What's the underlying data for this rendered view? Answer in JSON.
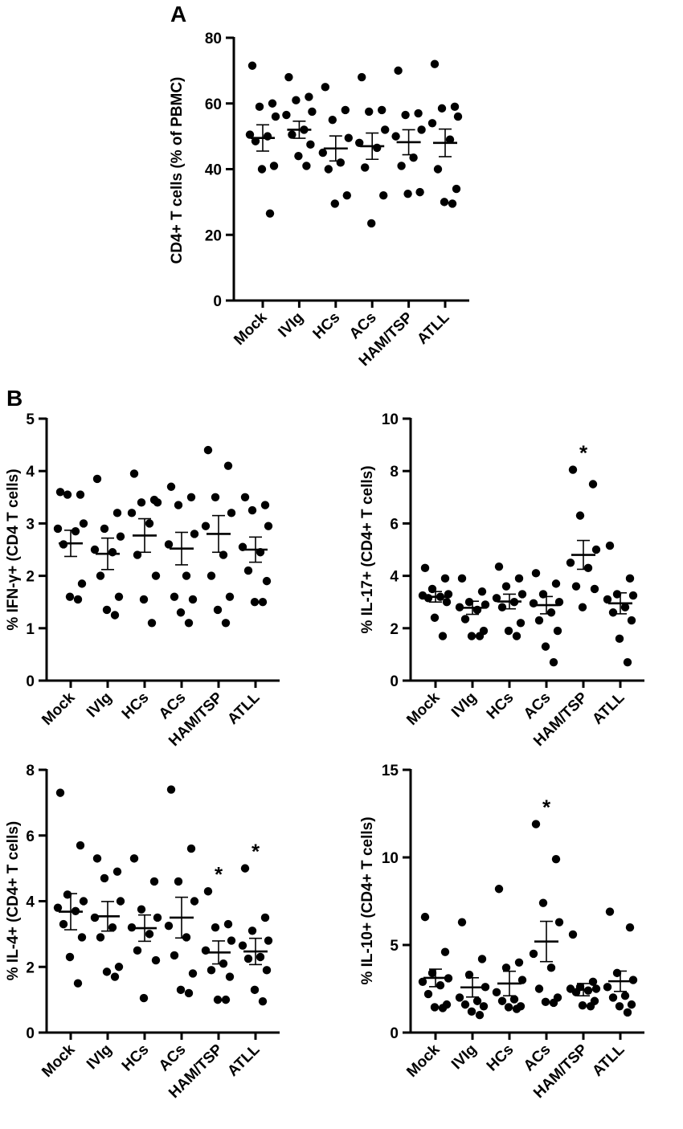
{
  "figure": {
    "panel_a_label": "A",
    "panel_b_label": "B",
    "colors": {
      "ink": "#000000",
      "background": "#ffffff"
    }
  },
  "chart_data": [
    {
      "id": "cd4",
      "type": "scatter",
      "subtype": "dot-plot-mean-sem",
      "ylabel": "CD4+ T cells (% of PBMC)",
      "ylim": [
        0,
        80
      ],
      "yticks": [
        0,
        20,
        40,
        60,
        80
      ],
      "categories": [
        "Mock",
        "IVIg",
        "HCs",
        "ACs",
        "HAM/TSP",
        "ATLL"
      ],
      "points": [
        [
          71.5,
          60,
          59,
          56,
          50.5,
          50,
          48.5,
          41,
          40,
          26.5
        ],
        [
          68,
          62,
          61,
          57.5,
          56.5,
          52,
          50.5,
          47.5,
          44,
          41
        ],
        [
          65,
          58,
          55,
          49.5,
          45,
          42,
          40,
          32,
          29.5
        ],
        [
          68,
          58,
          57.5,
          52,
          48,
          46.5,
          40.5,
          32,
          23.5
        ],
        [
          70,
          57,
          56.5,
          52,
          50,
          43.5,
          41,
          33,
          32.5
        ],
        [
          72,
          59,
          58.5,
          56,
          54,
          49,
          40,
          34,
          30,
          29.5
        ]
      ],
      "mean": [
        49.5,
        52,
        46.3,
        47,
        48.2,
        48
      ],
      "sem": [
        4,
        2.6,
        3.8,
        4,
        3.8,
        4.2
      ],
      "significance": [
        "",
        "",
        "",
        "",
        "",
        ""
      ]
    },
    {
      "id": "ifng",
      "type": "scatter",
      "subtype": "dot-plot-mean-sem",
      "ylabel": "% IFN-γ+ (CD4 T cells)",
      "ylim": [
        0,
        5
      ],
      "yticks": [
        0,
        1,
        2,
        3,
        4,
        5
      ],
      "categories": [
        "Mock",
        "IVIg",
        "HCs",
        "ACs",
        "HAM/TSP",
        "ATLL"
      ],
      "points": [
        [
          3.6,
          3.55,
          3.55,
          3.0,
          2.9,
          2.85,
          2.6,
          1.85,
          1.6,
          1.55
        ],
        [
          3.85,
          3.2,
          2.9,
          2.75,
          2.5,
          2.45,
          2.0,
          1.6,
          1.35,
          1.25
        ],
        [
          3.95,
          3.45,
          3.4,
          3.4,
          3.2,
          3.0,
          2.4,
          2.0,
          1.55,
          1.1
        ],
        [
          3.7,
          3.5,
          3.35,
          2.8,
          2.6,
          2.0,
          1.6,
          1.55,
          1.3,
          1.1
        ],
        [
          4.4,
          4.1,
          3.5,
          3.2,
          2.95,
          2.4,
          2.0,
          1.6,
          1.35,
          1.1
        ],
        [
          3.5,
          3.35,
          3.25,
          2.95,
          2.55,
          2.45,
          2.1,
          1.9,
          1.5,
          1.5
        ]
      ],
      "mean": [
        2.62,
        2.42,
        2.77,
        2.52,
        2.8,
        2.5
      ],
      "sem": [
        0.25,
        0.3,
        0.32,
        0.31,
        0.35,
        0.24
      ],
      "significance": [
        "",
        "",
        "",
        "",
        "",
        ""
      ]
    },
    {
      "id": "il17",
      "type": "scatter",
      "subtype": "dot-plot-mean-sem",
      "ylabel": "% IL-17+ (CD4+ T cells)",
      "ylim": [
        0,
        10
      ],
      "yticks": [
        0,
        2,
        4,
        6,
        8,
        10
      ],
      "categories": [
        "Mock",
        "IVIg",
        "HCs",
        "ACs",
        "HAM/TSP",
        "ATLL"
      ],
      "points": [
        [
          4.3,
          3.9,
          3.5,
          3.3,
          3.25,
          3.2,
          3.15,
          3.0,
          2.4,
          1.7
        ],
        [
          3.9,
          3.4,
          3.0,
          2.9,
          2.8,
          2.7,
          2.35,
          1.9,
          1.7,
          1.7
        ],
        [
          4.35,
          3.9,
          3.6,
          3.3,
          3.15,
          3.0,
          2.8,
          2.2,
          1.9,
          1.7
        ],
        [
          4.1,
          3.7,
          3.3,
          3.0,
          2.95,
          2.6,
          2.3,
          1.9,
          1.3,
          0.7
        ],
        [
          8.05,
          7.5,
          6.3,
          5.0,
          4.5,
          4.3,
          3.6,
          3.5,
          2.8
        ],
        [
          5.15,
          3.9,
          3.3,
          3.25,
          3.1,
          2.8,
          2.6,
          2.3,
          1.6,
          0.7
        ]
      ],
      "mean": [
        3.2,
        2.78,
        3.02,
        2.88,
        4.8,
        2.95
      ],
      "sem": [
        0.2,
        0.25,
        0.28,
        0.33,
        0.55,
        0.4
      ],
      "significance": [
        "",
        "",
        "",
        "",
        "*",
        ""
      ]
    },
    {
      "id": "il4",
      "type": "scatter",
      "subtype": "dot-plot-mean-sem",
      "ylabel": "% IL-4+ (CD4+ T cells)",
      "ylim": [
        0,
        8
      ],
      "yticks": [
        0,
        2,
        4,
        6,
        8
      ],
      "categories": [
        "Mock",
        "IVIg",
        "HCs",
        "ACs",
        "HAM/TSP",
        "ATLL"
      ],
      "points": [
        [
          7.3,
          5.7,
          4.2,
          4.0,
          3.8,
          3.7,
          3.3,
          2.9,
          2.3,
          1.5
        ],
        [
          5.3,
          4.9,
          4.7,
          4.0,
          3.5,
          3.2,
          2.9,
          2.0,
          1.85,
          1.7
        ],
        [
          5.3,
          4.6,
          3.75,
          3.5,
          3.2,
          3.0,
          2.5,
          2.2,
          1.05
        ],
        [
          7.4,
          5.6,
          4.6,
          4.0,
          3.25,
          2.9,
          2.35,
          1.8,
          1.3,
          1.2
        ],
        [
          4.3,
          3.3,
          3.2,
          2.8,
          2.5,
          2.1,
          1.9,
          1.7,
          1.0,
          1.0
        ],
        [
          5.0,
          3.5,
          3.1,
          2.8,
          2.65,
          2.3,
          2.25,
          1.9,
          1.3,
          0.95
        ]
      ],
      "mean": [
        3.68,
        3.54,
        3.18,
        3.5,
        2.44,
        2.47
      ],
      "sem": [
        0.55,
        0.45,
        0.4,
        0.62,
        0.35,
        0.4
      ],
      "significance": [
        "",
        "",
        "",
        "",
        "*",
        "*"
      ]
    },
    {
      "id": "il10",
      "type": "scatter",
      "subtype": "dot-plot-mean-sem",
      "ylabel": "% IL-10+ (CD4+ T cells)",
      "ylim": [
        0,
        15
      ],
      "yticks": [
        0,
        5,
        10,
        15
      ],
      "categories": [
        "Mock",
        "IVIg",
        "HCs",
        "ACs",
        "HAM/TSP",
        "ATLL"
      ],
      "points": [
        [
          6.6,
          4.6,
          3.4,
          3.1,
          2.9,
          2.7,
          2.2,
          1.6,
          1.45,
          1.4
        ],
        [
          6.3,
          4.2,
          3.3,
          2.6,
          2.0,
          1.8,
          1.6,
          1.5,
          1.2,
          1.0
        ],
        [
          8.2,
          4.0,
          3.7,
          3.0,
          2.3,
          1.9,
          1.8,
          1.5,
          1.45,
          1.35
        ],
        [
          11.9,
          9.9,
          7.4,
          6.3,
          4.5,
          3.7,
          2.5,
          2.0,
          1.75,
          1.7
        ],
        [
          5.6,
          2.9,
          2.6,
          2.5,
          2.5,
          2.4,
          2.3,
          1.8,
          1.55,
          1.5
        ],
        [
          6.9,
          6.0,
          3.4,
          3.0,
          2.6,
          2.1,
          2.0,
          1.6,
          1.5,
          1.15
        ]
      ],
      "mean": [
        3.12,
        2.58,
        2.8,
        5.2,
        2.45,
        2.93
      ],
      "sem": [
        0.5,
        0.55,
        0.7,
        1.15,
        0.35,
        0.58
      ],
      "significance": [
        "",
        "",
        "",
        "*",
        "",
        ""
      ]
    }
  ]
}
